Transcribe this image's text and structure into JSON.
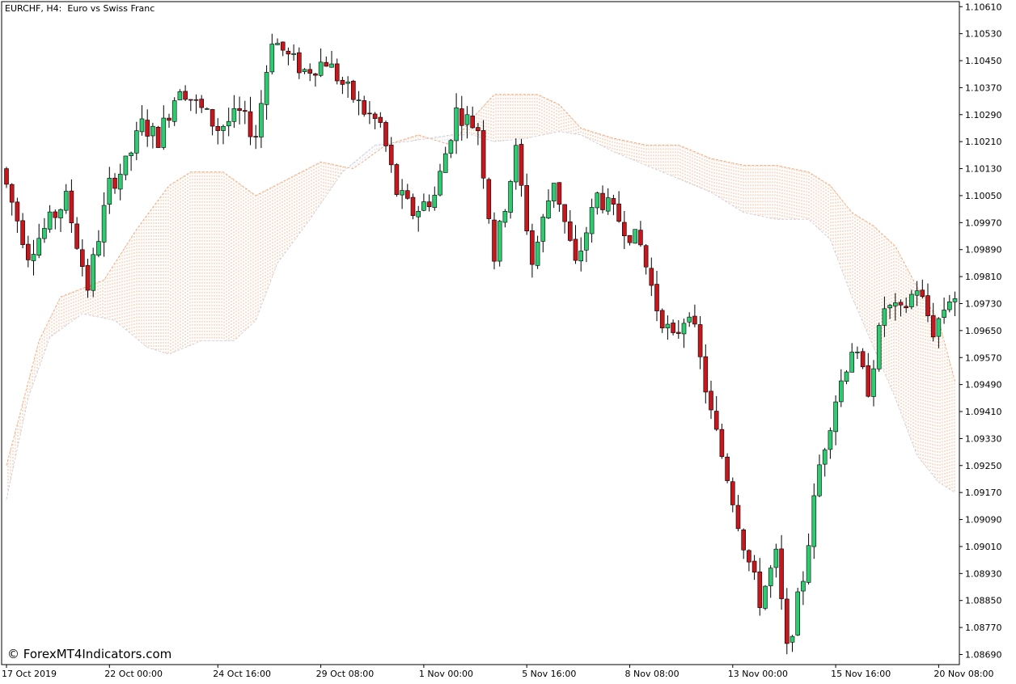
{
  "header": {
    "symbol_label": "EURCHF, H4:  Euro vs Swiss Franc"
  },
  "footer": {
    "copyright": "© ForexMT4Indicators.com"
  },
  "colors": {
    "background": "#ffffff",
    "bull_body": "#2ecc71",
    "bear_body": "#c8161d",
    "wick": "#000000",
    "cloud_bull": "#f0a070",
    "cloud_bear": "#c8c8d8",
    "axis": "#000000"
  },
  "chart_data": {
    "type": "candlestick",
    "symbol": "EURCHF",
    "timeframe": "H4",
    "y_ticks": [
      1.1061,
      1.1053,
      1.1045,
      1.1037,
      1.1029,
      1.1021,
      1.1013,
      1.1005,
      1.0997,
      1.0989,
      1.0981,
      1.0973,
      1.0965,
      1.0957,
      1.0949,
      1.0941,
      1.0933,
      1.0925,
      1.0917,
      1.0909,
      1.0901,
      1.0893,
      1.0885,
      1.0877,
      1.0869
    ],
    "y_tick_labels": [
      "1.10610",
      "1.10530",
      "1.10450",
      "1.10370",
      "1.10290",
      "1.10210",
      "1.10130",
      "1.10050",
      "1.09970",
      "1.09890",
      "1.09810",
      "1.09730",
      "1.09650",
      "1.09570",
      "1.09490",
      "1.09410",
      "1.09330",
      "1.09250",
      "1.09170",
      "1.09090",
      "1.09010",
      "1.08930",
      "1.08850",
      "1.08770",
      "1.08690"
    ],
    "ylim": [
      1.0866,
      1.10625
    ],
    "x_labels": [
      {
        "index": 0,
        "label": "17 Oct 2019"
      },
      {
        "index": 19,
        "label": "22 Oct 00:00"
      },
      {
        "index": 39,
        "label": "24 Oct 16:00"
      },
      {
        "index": 58,
        "label": "29 Oct 08:00"
      },
      {
        "index": 77,
        "label": "1 Nov 00:00"
      },
      {
        "index": 96,
        "label": "5 Nov 16:00"
      },
      {
        "index": 115,
        "label": "8 Nov 08:00"
      },
      {
        "index": 134,
        "label": "13 Nov 00:00"
      },
      {
        "index": 153,
        "label": "15 Nov 16:00"
      },
      {
        "index": 172,
        "label": "20 Nov 08:00"
      }
    ],
    "candle_count": 176,
    "anchors": [
      [
        0,
        1.1013
      ],
      [
        5,
        1.0988
      ],
      [
        8,
        1.0995
      ],
      [
        12,
        1.1004
      ],
      [
        16,
        1.0978
      ],
      [
        20,
        1.1008
      ],
      [
        23,
        1.1014
      ],
      [
        26,
        1.1026
      ],
      [
        29,
        1.1022
      ],
      [
        33,
        1.1038
      ],
      [
        36,
        1.1032
      ],
      [
        40,
        1.1025
      ],
      [
        44,
        1.1029
      ],
      [
        47,
        1.1023
      ],
      [
        50,
        1.1052
      ],
      [
        53,
        1.1046
      ],
      [
        56,
        1.1042
      ],
      [
        60,
        1.1045
      ],
      [
        63,
        1.1038
      ],
      [
        67,
        1.103
      ],
      [
        70,
        1.1026
      ],
      [
        73,
        1.1006
      ],
      [
        76,
        1.1
      ],
      [
        80,
        1.1005
      ],
      [
        84,
        1.103
      ],
      [
        88,
        1.1025
      ],
      [
        91,
        1.0987
      ],
      [
        95,
        1.1018
      ],
      [
        98,
        1.0985
      ],
      [
        102,
        1.101
      ],
      [
        106,
        1.0984
      ],
      [
        110,
        1.1005
      ],
      [
        114,
        1.0998
      ],
      [
        118,
        1.099
      ],
      [
        121,
        1.0972
      ],
      [
        124,
        1.0962
      ],
      [
        127,
        1.0972
      ],
      [
        131,
        1.094
      ],
      [
        134,
        1.0922
      ],
      [
        137,
        1.0902
      ],
      [
        140,
        1.0885
      ],
      [
        143,
        1.0898
      ],
      [
        145,
        1.087
      ],
      [
        148,
        1.0892
      ],
      [
        151,
        1.0925
      ],
      [
        154,
        1.0945
      ],
      [
        157,
        1.096
      ],
      [
        160,
        1.0948
      ],
      [
        163,
        1.0972
      ],
      [
        166,
        1.097
      ],
      [
        169,
        1.0978
      ],
      [
        172,
        1.0965
      ],
      [
        175,
        1.0975
      ]
    ],
    "cloud_top": [
      [
        0,
        1.0925
      ],
      [
        6,
        1.0962
      ],
      [
        10,
        1.0975
      ],
      [
        18,
        1.098
      ],
      [
        24,
        1.0995
      ],
      [
        30,
        1.1008
      ],
      [
        34,
        1.1012
      ],
      [
        40,
        1.1012
      ],
      [
        46,
        1.1005
      ],
      [
        52,
        1.101
      ],
      [
        58,
        1.1015
      ],
      [
        64,
        1.1013
      ],
      [
        70,
        1.102
      ],
      [
        76,
        1.1023
      ],
      [
        82,
        1.102
      ],
      [
        86,
        1.1028
      ],
      [
        90,
        1.1035
      ],
      [
        94,
        1.1035
      ],
      [
        98,
        1.1035
      ],
      [
        102,
        1.1032
      ],
      [
        106,
        1.1025
      ],
      [
        112,
        1.1022
      ],
      [
        118,
        1.102
      ],
      [
        124,
        1.102
      ],
      [
        130,
        1.1016
      ],
      [
        136,
        1.1014
      ],
      [
        142,
        1.1014
      ],
      [
        148,
        1.1012
      ],
      [
        152,
        1.1008
      ],
      [
        156,
        1.1
      ],
      [
        160,
        1.0996
      ],
      [
        164,
        1.099
      ],
      [
        168,
        1.0978
      ],
      [
        172,
        1.0968
      ],
      [
        175,
        1.095
      ]
    ],
    "cloud_bottom": [
      [
        0,
        1.0915
      ],
      [
        4,
        1.0945
      ],
      [
        8,
        1.0963
      ],
      [
        14,
        1.097
      ],
      [
        20,
        1.0968
      ],
      [
        26,
        1.096
      ],
      [
        30,
        1.0958
      ],
      [
        36,
        1.0962
      ],
      [
        42,
        1.0962
      ],
      [
        46,
        1.0968
      ],
      [
        50,
        1.0985
      ],
      [
        56,
        1.0998
      ],
      [
        62,
        1.1012
      ],
      [
        68,
        1.102
      ],
      [
        74,
        1.1021
      ],
      [
        78,
        1.1022
      ],
      [
        82,
        1.1023
      ],
      [
        86,
        1.1023
      ],
      [
        90,
        1.1021
      ],
      [
        96,
        1.1022
      ],
      [
        102,
        1.1024
      ],
      [
        106,
        1.1023
      ],
      [
        112,
        1.1018
      ],
      [
        118,
        1.1014
      ],
      [
        124,
        1.101
      ],
      [
        130,
        1.1006
      ],
      [
        136,
        1.1
      ],
      [
        142,
        1.0998
      ],
      [
        148,
        1.0998
      ],
      [
        152,
        1.0992
      ],
      [
        156,
        1.0975
      ],
      [
        160,
        1.096
      ],
      [
        164,
        1.0945
      ],
      [
        168,
        1.0928
      ],
      [
        172,
        1.092
      ],
      [
        175,
        1.0917
      ]
    ]
  }
}
